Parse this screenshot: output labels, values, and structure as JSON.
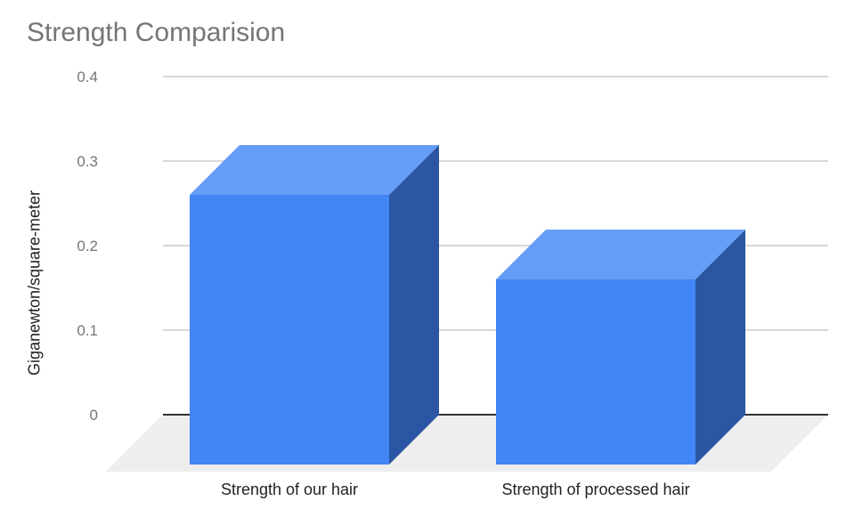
{
  "chart_data": {
    "type": "bar",
    "title": "Strength Comparision",
    "xlabel": "",
    "ylabel": "Giganewton/square-meter",
    "categories": [
      "Strength of our hair",
      "Strength of processed hair"
    ],
    "values": [
      0.26,
      0.16
    ],
    "ylim": [
      0,
      0.4
    ],
    "yticks": [
      "0",
      "0.1",
      "0.2",
      "0.3",
      "0.4"
    ],
    "grid": true,
    "three_d": true,
    "colors": {
      "front": "#4285f4",
      "top": "#669df6",
      "side": "#2a56a3",
      "floor": "#eeeeee",
      "grid": "#cccccc",
      "baseline": "#333333"
    }
  }
}
